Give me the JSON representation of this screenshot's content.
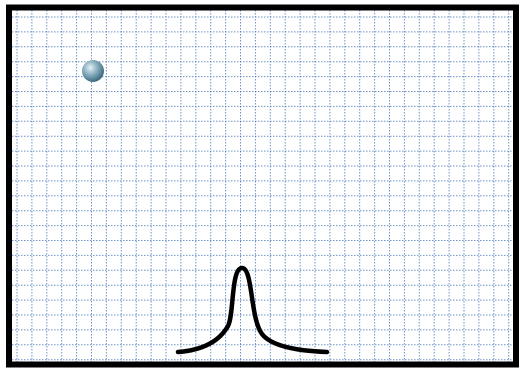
{
  "scene": {
    "background_color": "#ffffff",
    "grid_color": "#3f6fb3",
    "frame_color": "#000000",
    "curve_color": "#000000",
    "ball_color": "#5b8a9e",
    "objects": [
      "ball",
      "bump-curve",
      "grid",
      "frame"
    ]
  }
}
